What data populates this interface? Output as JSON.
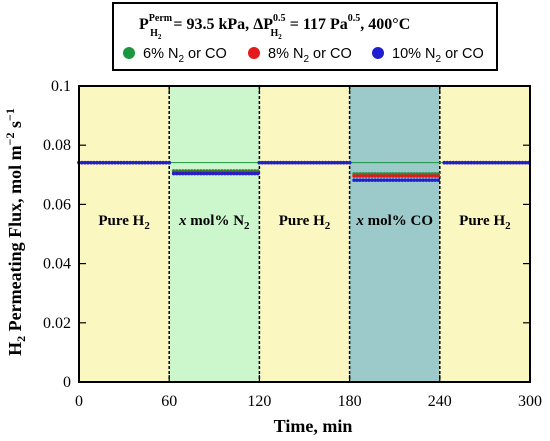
{
  "chart_data": {
    "type": "scatter",
    "header": {
      "lhs_base": "P",
      "lhs_sup": "Perm",
      "lhs_sub": "H",
      "lhs_sub2": "2",
      "lhs_eq": " = 93.5 kPa, ",
      "delta_base": "ΔP",
      "delta_sup": "0.5",
      "delta_sub": "H",
      "delta_sub2": "2",
      "delta_eq": " = 117 Pa",
      "delta_unit_sup": "0.5",
      "tail": ", 400°C"
    },
    "legend": [
      {
        "prefix": "6% N",
        "sub": "2",
        "suffix": " or CO",
        "color": "#1a9641"
      },
      {
        "prefix": "8% N",
        "sub": "2",
        "suffix": " or CO",
        "color": "#e31a1c"
      },
      {
        "prefix": "10% N",
        "sub": "2",
        "suffix": " or CO",
        "color": "#1f1fcf"
      }
    ],
    "xlabel": "Time, min",
    "ylabel_prefix": "H",
    "ylabel_sub": "2",
    "ylabel_main": " Permeating Flux, mol m",
    "ylabel_sup1": "−2",
    "ylabel_mid": " s",
    "ylabel_sup2": "−1",
    "xlim": [
      0,
      300
    ],
    "ylim": [
      0,
      0.1
    ],
    "xticks": [
      "0",
      "60",
      "120",
      "180",
      "240",
      "300"
    ],
    "yticks": [
      "0",
      "0.02",
      "0.04",
      "0.06",
      "0.08",
      "0.1"
    ],
    "regions": [
      {
        "x0": 0,
        "x1": 60,
        "color": "#fbf7c0",
        "label": "Pure H",
        "label_sub": "2",
        "italic": ""
      },
      {
        "x0": 60,
        "x1": 120,
        "color": "#ccf7cc",
        "label": " mol% N",
        "label_sub": "2",
        "italic": "x"
      },
      {
        "x0": 120,
        "x1": 180,
        "color": "#fbf7c0",
        "label": "Pure H",
        "label_sub": "2",
        "italic": ""
      },
      {
        "x0": 180,
        "x1": 240,
        "color": "#9cc9c9",
        "label": " mol% CO",
        "label_sub": "",
        "italic": "x"
      },
      {
        "x0": 240,
        "x1": 300,
        "color": "#fbf7c0",
        "label": "Pure H",
        "label_sub": "2",
        "italic": ""
      }
    ],
    "reference_line": {
      "y": 0.0741,
      "color": "#1a9641"
    },
    "series": [
      {
        "name": "6% N2 or CO",
        "color": "#1a9641",
        "segments": [
          {
            "x0": 0,
            "x1": 60,
            "y": 0.0741
          },
          {
            "x0": 63,
            "x1": 120,
            "y": 0.0713
          },
          {
            "x0": 120,
            "x1": 180,
            "y": 0.0741
          },
          {
            "x0": 183,
            "x1": 240,
            "y": 0.0703
          },
          {
            "x0": 243,
            "x1": 300,
            "y": 0.0741
          }
        ]
      },
      {
        "name": "8% N2 or CO",
        "color": "#e31a1c",
        "segments": [
          {
            "x0": 0,
            "x1": 60,
            "y": 0.0741
          },
          {
            "x0": 63,
            "x1": 120,
            "y": 0.0708
          },
          {
            "x0": 120,
            "x1": 180,
            "y": 0.0741
          },
          {
            "x0": 183,
            "x1": 240,
            "y": 0.0696
          },
          {
            "x0": 243,
            "x1": 300,
            "y": 0.0741
          }
        ]
      },
      {
        "name": "10% N2 or CO",
        "color": "#1f1fcf",
        "segments": [
          {
            "x0": 0,
            "x1": 60,
            "y": 0.0741
          },
          {
            "x0": 63,
            "x1": 120,
            "y": 0.0704
          },
          {
            "x0": 120,
            "x1": 180,
            "y": 0.0741
          },
          {
            "x0": 183,
            "x1": 240,
            "y": 0.0682
          },
          {
            "x0": 243,
            "x1": 300,
            "y": 0.0741
          }
        ]
      }
    ],
    "grid": false,
    "legend_placement": "top"
  }
}
